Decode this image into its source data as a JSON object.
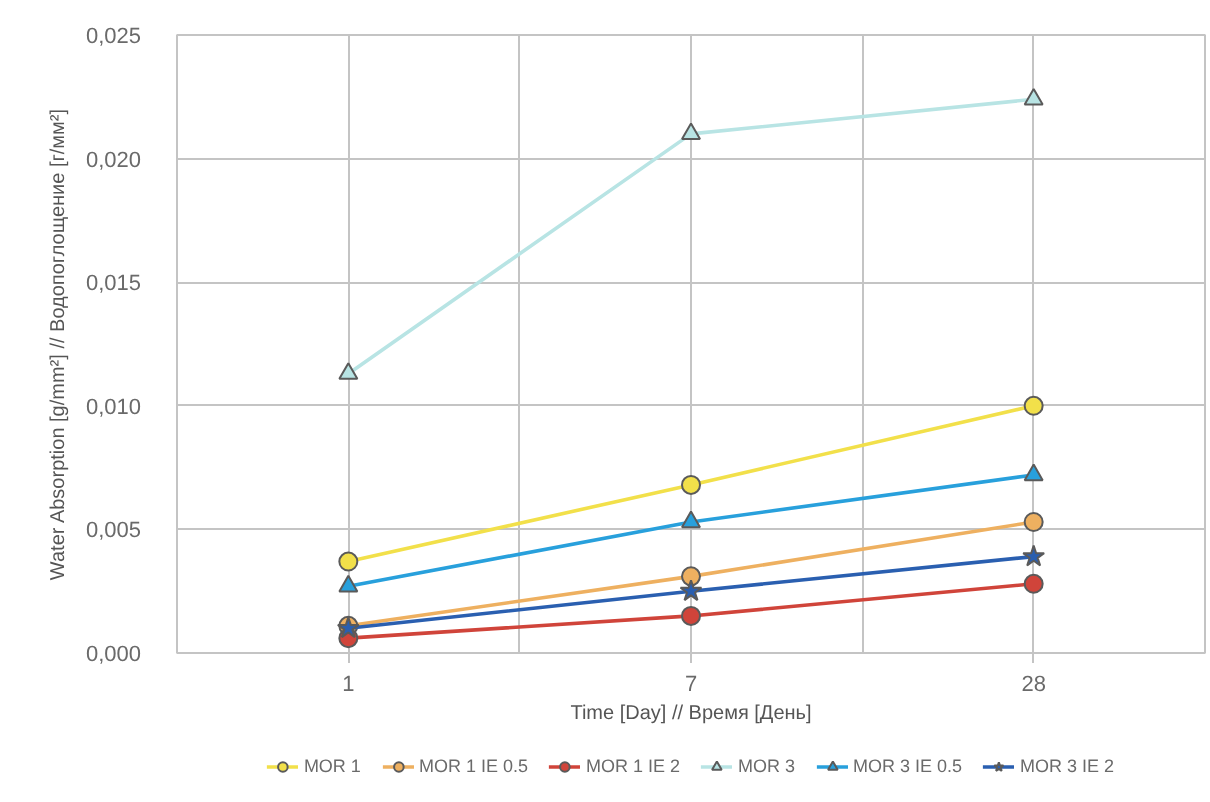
{
  "chart_data": {
    "type": "line",
    "xlabel": "Time [Day] // Время [День]",
    "ylabel": "Water Absorption [g/mm²] // Водопоглощение [г/мм²]",
    "categories": [
      "1",
      "7",
      "28"
    ],
    "ylim": [
      0,
      0.025
    ],
    "yticks": [
      {
        "value": 0,
        "label": "0,000"
      },
      {
        "value": 0.005,
        "label": "0,005"
      },
      {
        "value": 0.01,
        "label": "0,010"
      },
      {
        "value": 0.015,
        "label": "0,015"
      },
      {
        "value": 0.02,
        "label": "0,020"
      },
      {
        "value": 0.025,
        "label": "0,025"
      }
    ],
    "grid": true,
    "legend": "bottom",
    "line_style": "solid",
    "series": [
      {
        "name": "MOR 1",
        "color": "#f2e04a",
        "marker": "circle",
        "values": [
          0.0037,
          0.0068,
          0.01
        ]
      },
      {
        "name": "MOR 1 IE 0.5",
        "color": "#eeb060",
        "marker": "circle",
        "values": [
          0.0011,
          0.0031,
          0.0053
        ]
      },
      {
        "name": "MOR 1 IE 2",
        "color": "#d0443a",
        "marker": "circle",
        "values": [
          0.0006,
          0.0015,
          0.0028
        ]
      },
      {
        "name": "MOR 3",
        "color": "#b8e4e4",
        "marker": "triangle",
        "values": [
          0.0113,
          0.021,
          0.0224
        ]
      },
      {
        "name": "MOR 3 IE 0.5",
        "color": "#28a0dc",
        "marker": "triangle",
        "values": [
          0.0027,
          0.0053,
          0.0072
        ]
      },
      {
        "name": "MOR 3 IE 2",
        "color": "#2a5fb0",
        "marker": "star",
        "values": [
          0.001,
          0.0025,
          0.0039
        ]
      }
    ]
  }
}
